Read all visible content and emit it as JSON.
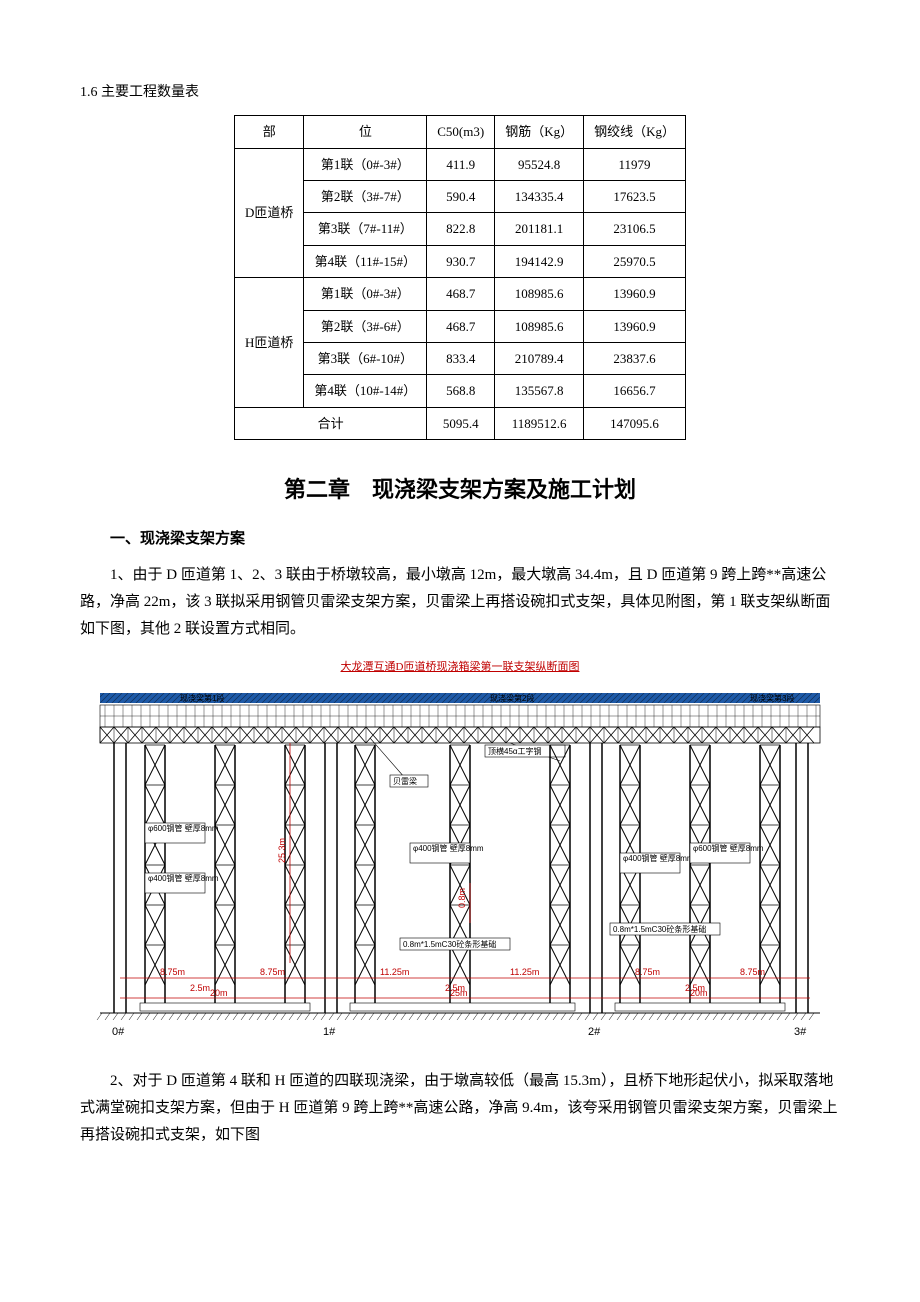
{
  "section_1_6": {
    "heading": "1.6 主要工程数量表",
    "table": {
      "columns": [
        "部",
        "位",
        "C50(m3)",
        "钢筋（Kg）",
        "钢绞线（Kg）"
      ],
      "groups": [
        {
          "name": "D匝道桥",
          "rows": [
            [
              "第1联（0#-3#）",
              "411.9",
              "95524.8",
              "11979"
            ],
            [
              "第2联（3#-7#）",
              "590.4",
              "134335.4",
              "17623.5"
            ],
            [
              "第3联（7#-11#）",
              "822.8",
              "201181.1",
              "23106.5"
            ],
            [
              "第4联（11#-15#）",
              "930.7",
              "194142.9",
              "25970.5"
            ]
          ]
        },
        {
          "name": "H匝道桥",
          "rows": [
            [
              "第1联（0#-3#）",
              "468.7",
              "108985.6",
              "13960.9"
            ],
            [
              "第2联（3#-6#）",
              "468.7",
              "108985.6",
              "13960.9"
            ],
            [
              "第3联（6#-10#）",
              "833.4",
              "210789.4",
              "23837.6"
            ],
            [
              "第4联（10#-14#）",
              "568.8",
              "135567.8",
              "16656.7"
            ]
          ]
        }
      ],
      "total": {
        "label": "合计",
        "c50": "5095.4",
        "rebar": "1189512.6",
        "strand": "147095.6"
      }
    }
  },
  "chapter2": {
    "title": "第二章　现浇梁支架方案及施工计划",
    "sub1": "一、现浇梁支架方案",
    "para1": "1、由于 D 匝道第 1、2、3 联由于桥墩较高，最小墩高 12m，最大墩高 34.4m，且 D 匝道第 9 跨上跨**高速公路，净高 22m，该 3 联拟采用钢管贝雷梁支架方案，贝雷梁上再搭设碗扣式支架，具体见附图，第 1 联支架纵断面如下图，其他 2 联设置方式相同。",
    "para2": "2、对于 D 匝道第 4 联和 H 匝道的四联现浇梁，由于墩高较低（最高 15.3m），且桥下地形起伏小，拟采取落地式满堂碗扣支架方案，但由于 H 匝道第 9 跨上跨**高速公路，净高 9.4m，该夸采用钢管贝雷梁支架方案，贝雷梁上再搭设碗扣式支架，如下图"
  },
  "diagram": {
    "caption": "大龙潭互通D匝道桥现浇箱梁第一联支架纵断面图",
    "piers": [
      "0#",
      "1#",
      "2#",
      "3#"
    ],
    "top_labels": [
      "现浇梁第1段",
      "现浇梁第2段",
      "现浇梁第3段"
    ],
    "annotations": {
      "a1": "φ600钢管 壁厚8mm",
      "a2": "φ400钢管 壁厚8mm",
      "a3": "φ400钢管 壁厚8mm",
      "a4": "φ400钢管 壁厚8mm",
      "a5": "φ600钢管 壁厚8mm",
      "a6": "贝雷梁",
      "a7": "顶横45α工字钢",
      "a8": "0.8m*1.5mC30砼条形基础",
      "a9": "0.8m*1.5mC30砼条形基础"
    },
    "dims": {
      "h1": "25.3m",
      "h2": "0.8m",
      "s1": "8.75m",
      "s2": "8.75m",
      "s3": "11.25m",
      "s4": "11.25m",
      "s5": "8.75m",
      "s6": "8.75m",
      "g1": "2.5m",
      "g2": "2.5m",
      "g3": "2.5m",
      "span1": "20m",
      "span2": "25m",
      "span3": "20m"
    },
    "colors": {
      "beam": "#1e5aa8",
      "red": "#c00000",
      "black": "#000000"
    }
  }
}
